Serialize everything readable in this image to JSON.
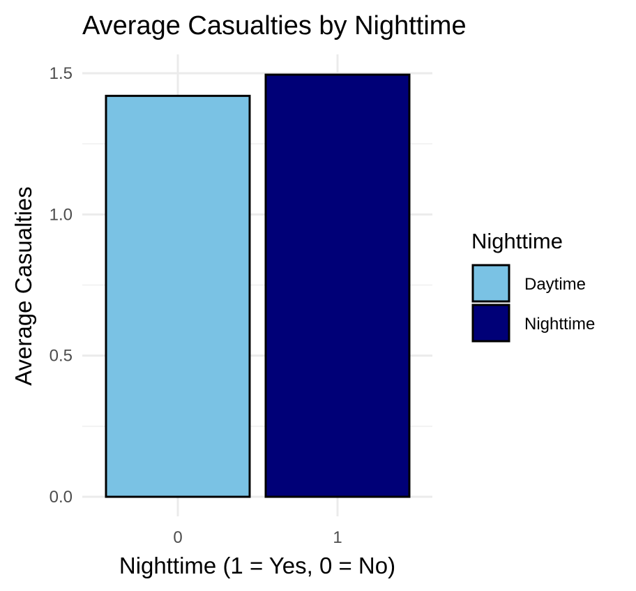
{
  "chart_data": {
    "type": "bar",
    "title": "Average Casualties by Nighttime",
    "xlabel": "Nighttime (1 = Yes, 0 = No)",
    "ylabel": "Average Casualties",
    "categories": [
      "0",
      "1"
    ],
    "values": [
      1.42,
      1.495
    ],
    "ylim": [
      0,
      1.5
    ],
    "yticks": [
      "0.0",
      "0.5",
      "1.0",
      "1.5"
    ],
    "grid": true,
    "legend": {
      "title": "Nighttime",
      "placement": "right",
      "entries": [
        {
          "label": "Daytime",
          "color": "#7AC2E4"
        },
        {
          "label": "Nighttime",
          "color": "#000077"
        }
      ]
    },
    "bar_colors": [
      "#7AC2E4",
      "#000077"
    ],
    "bar_outline": "#000000"
  }
}
